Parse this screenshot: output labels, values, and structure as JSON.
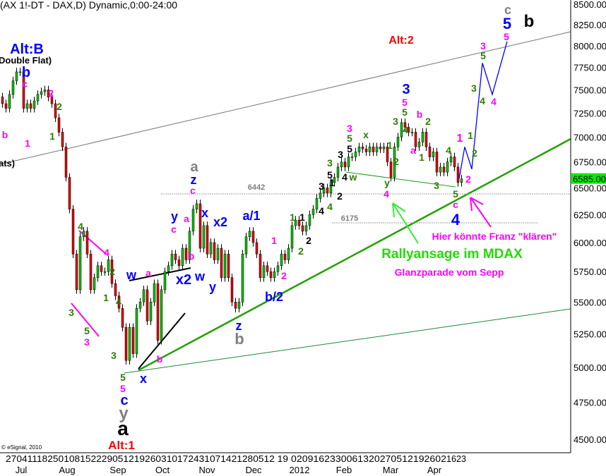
{
  "title": "(AX 1!-DT - DAX,D) Dynamic,0:00-24:00",
  "copyright": "© eSignal, 2010",
  "chart_data": {
    "type": "candlestick",
    "scale": "log",
    "ylim": [
      4500,
      8500
    ],
    "y_ticks": [
      "8500.00",
      "8250.00",
      "8000.00",
      "7750.00",
      "7500.00",
      "7250.00",
      "7000.00",
      "6750.00",
      "6500.00",
      "6250.00",
      "6000.00",
      "5750.00",
      "5500.00",
      "5250.00",
      "5000.00",
      "4750.00",
      "4500.00"
    ],
    "y_tick_values": [
      8500,
      8250,
      8000,
      7750,
      7500,
      7250,
      7000,
      6750,
      6500,
      6250,
      6000,
      5750,
      5500,
      5250,
      5000,
      4750,
      4500
    ],
    "last_price": "6585.00",
    "last_price_value": 6585,
    "x_day_labels": [
      "27041118250108152229051219260310172431071421280512 19",
      "0209162330061320270512192602",
      "1623"
    ],
    "x_month_labels": [
      "Jul",
      "Aug",
      "Sep",
      "Oct",
      "Nov",
      "Dec",
      "2012",
      "Feb",
      "Mar",
      "Apr"
    ],
    "closes_approx": [
      7350,
      7300,
      7450,
      7600,
      7700,
      7700,
      7300,
      7350,
      7300,
      7380,
      7450,
      7480,
      7500,
      7420,
      7350,
      7200,
      7050,
      6900,
      6600,
      6300,
      5900,
      5600,
      6050,
      6100,
      5900,
      5600,
      5700,
      5800,
      5750,
      5750,
      5850,
      5650,
      5550,
      5450,
      5300,
      5050,
      5300,
      5100,
      5450,
      5500,
      5600,
      5350,
      5500,
      5650,
      5200,
      5600,
      5750,
      5800,
      5900,
      5850,
      5800,
      5950,
      5850,
      6100,
      6300,
      6350,
      5950,
      6150,
      5900,
      6000,
      5850,
      5950,
      5700,
      5900,
      5700,
      5500,
      5450,
      5500,
      5900,
      6050,
      6100,
      6000,
      5900,
      5700,
      5800,
      5750,
      5700,
      5750,
      5800,
      5900,
      5850,
      5950,
      6150,
      6200,
      6150,
      6100,
      6150,
      6250,
      6300,
      6400,
      6450,
      6500,
      6450,
      6550,
      6600,
      6700,
      6750,
      6700,
      6800,
      6800,
      6850,
      6900,
      6880,
      6850,
      6900,
      6850,
      6900,
      6880,
      6900,
      6750,
      6600,
      6900,
      7000,
      7150,
      7100,
      7050,
      7050,
      6900,
      6950,
      7050,
      6900,
      6800,
      6850,
      6650,
      6700,
      6650,
      6750,
      6800,
      6700,
      6550,
      6585
    ],
    "horizontal_levels": [
      {
        "label": "6442",
        "value": 6442
      },
      {
        "label": "6175",
        "value": 6175
      }
    ],
    "forecast_path": [
      6585,
      6900,
      6680,
      7800,
      7450,
      8050
    ],
    "colors": {
      "up": "#00c000",
      "down": "#e00000",
      "forecast": "#0000ff",
      "trend_main": "#22a000",
      "trend_thin": "#1a8a3a",
      "channel": "#707870",
      "level": "#a0a0a0",
      "price_tag": "#00ee00"
    }
  },
  "annotations": [
    {
      "text": "Alt:B",
      "color": "#0000ff"
    },
    {
      "text": "Double Flat)",
      "color": "#000000"
    },
    {
      "text": "ats)",
      "color": "#000000"
    },
    {
      "text": "b",
      "color": "#0000ff"
    },
    {
      "text": "c",
      "color": "#ff00ff"
    },
    {
      "text": "2",
      "color": "#ff00ff"
    },
    {
      "text": "2",
      "color": "#2e7d00"
    },
    {
      "text": "1",
      "color": "#2e7d00"
    },
    {
      "text": "1",
      "color": "#ff00ff"
    },
    {
      "text": "b",
      "color": "#ff00ff"
    },
    {
      "text": "Alt:2",
      "color": "#ff0000"
    },
    {
      "text": "c",
      "color": "#808080"
    },
    {
      "text": "5",
      "color": "#0000ff"
    },
    {
      "text": "b",
      "color": "#000000"
    },
    {
      "text": "5",
      "color": "#ff00ff"
    },
    {
      "text": "3",
      "color": "#ff00ff"
    },
    {
      "text": "5",
      "color": "#2e7d00"
    },
    {
      "text": "3",
      "color": "#2e7d00"
    },
    {
      "text": "4",
      "color": "#2e7d00"
    },
    {
      "text": "4",
      "color": "#ff00ff"
    },
    {
      "text": "1",
      "color": "#ff00ff"
    },
    {
      "text": "1",
      "color": "#2e7d00"
    },
    {
      "text": "2",
      "color": "#2e7d00"
    },
    {
      "text": "2",
      "color": "#ff00ff"
    },
    {
      "text": "3",
      "color": "#0000ff"
    },
    {
      "text": "5",
      "color": "#ff00ff"
    },
    {
      "text": "5",
      "color": "#2e7d00"
    },
    {
      "text": "3",
      "color": "#2e7d00"
    },
    {
      "text": "4",
      "color": "#2e7d00"
    },
    {
      "text": "b",
      "color": "#ff00ff"
    },
    {
      "text": "2",
      "color": "#2e7d00"
    },
    {
      "text": "a",
      "color": "#ff00ff"
    },
    {
      "text": "1",
      "color": "#2e7d00"
    },
    {
      "text": "4",
      "color": "#2e7d00"
    },
    {
      "text": "3",
      "color": "#2e7d00"
    },
    {
      "text": "5",
      "color": "#2e7d00"
    },
    {
      "text": "c",
      "color": "#ff00ff"
    },
    {
      "text": "4",
      "color": "#0000ff"
    },
    {
      "text": "3",
      "color": "#ff00ff"
    },
    {
      "text": "5",
      "color": "#2e7d00"
    },
    {
      "text": "5",
      "color": "#000000"
    },
    {
      "text": "3",
      "color": "#2e7d00"
    },
    {
      "text": "5",
      "color": "#000000"
    },
    {
      "text": "3",
      "color": "#000000"
    },
    {
      "text": "4",
      "color": "#000000"
    },
    {
      "text": "w",
      "color": "#2e7d00"
    },
    {
      "text": "x",
      "color": "#2e7d00"
    },
    {
      "text": "1",
      "color": "#2e7d00"
    },
    {
      "text": "2",
      "color": "#2e7d00"
    },
    {
      "text": "1",
      "color": "#2e7d00"
    },
    {
      "text": "1",
      "color": "#000000"
    },
    {
      "text": "2",
      "color": "#000000"
    },
    {
      "text": "2",
      "color": "#2e7d00"
    },
    {
      "text": "3",
      "color": "#000000"
    },
    {
      "text": "1",
      "color": "#000000"
    },
    {
      "text": "4",
      "color": "#2e7d00"
    },
    {
      "text": "2",
      "color": "#000000"
    },
    {
      "text": "4",
      "color": "#000000"
    },
    {
      "text": "y",
      "color": "#2e7d00"
    },
    {
      "text": "4",
      "color": "#ff00ff"
    },
    {
      "text": "6442",
      "color": "#808080"
    },
    {
      "text": "6175",
      "color": "#808080"
    },
    {
      "text": "a/1",
      "color": "#0000ff"
    },
    {
      "text": "1",
      "color": "#ff00ff"
    },
    {
      "text": "2",
      "color": "#ff00ff"
    },
    {
      "text": "b/2",
      "color": "#0000ff"
    },
    {
      "text": "x2",
      "color": "#0000ff"
    },
    {
      "text": "Rallyansage im MDAX",
      "color": "#22dd00"
    },
    {
      "text": "Glanzparade vom Sepp",
      "color": "#ff00ff"
    },
    {
      "text": "Hier könnte Franz \"klären\"",
      "color": "#ff00ff"
    },
    {
      "text": "a",
      "color": "#808080"
    },
    {
      "text": "z",
      "color": "#0000ff"
    },
    {
      "text": "c",
      "color": "#ff00ff"
    },
    {
      "text": "y",
      "color": "#0000ff"
    },
    {
      "text": "a",
      "color": "#ff00ff"
    },
    {
      "text": "c",
      "color": "#ff00ff"
    },
    {
      "text": "x",
      "color": "#0000ff"
    },
    {
      "text": "b",
      "color": "#ff00ff"
    },
    {
      "text": "w",
      "color": "#0000ff"
    },
    {
      "text": "a",
      "color": "#ff00ff"
    },
    {
      "text": "x2",
      "color": "#0000ff"
    },
    {
      "text": "w",
      "color": "#0000ff"
    },
    {
      "text": "y",
      "color": "#0000ff"
    },
    {
      "text": "z",
      "color": "#0000ff"
    },
    {
      "text": "b",
      "color": "#808080"
    },
    {
      "text": "4",
      "color": "#2e7d00"
    },
    {
      "text": "4",
      "color": "#ff00ff"
    },
    {
      "text": "2",
      "color": "#2e7d00"
    },
    {
      "text": "1",
      "color": "#2e7d00"
    },
    {
      "text": "4",
      "color": "#2e7d00"
    },
    {
      "text": "3",
      "color": "#2e7d00"
    },
    {
      "text": "5",
      "color": "#2e7d00"
    },
    {
      "text": "3",
      "color": "#ff00ff"
    },
    {
      "text": "3",
      "color": "#2e7d00"
    },
    {
      "text": "b",
      "color": "#ff00ff"
    },
    {
      "text": "5",
      "color": "#2e7d00"
    },
    {
      "text": "5",
      "color": "#ff00ff"
    },
    {
      "text": "c",
      "color": "#0000ff"
    },
    {
      "text": "y",
      "color": "#808080"
    },
    {
      "text": "a",
      "color": "#000000"
    },
    {
      "text": "Alt:1",
      "color": "#ff0000"
    },
    {
      "text": "x",
      "color": "#0000ff"
    }
  ]
}
